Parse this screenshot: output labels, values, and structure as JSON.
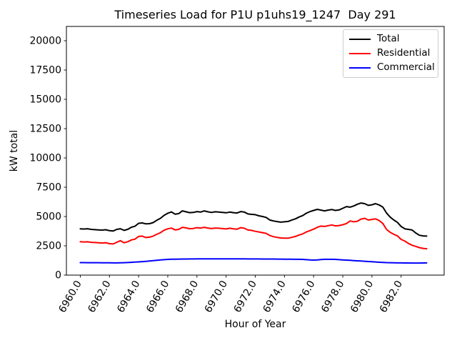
{
  "figure": {
    "background": "#ffffff"
  },
  "chart_data": {
    "type": "line",
    "title": "Timeseries Load for P1U p1uhs19_1247  Day 291",
    "xlabel": "Hour of Year",
    "ylabel": "kW total",
    "grid": false,
    "legend_position": "upper right",
    "xlim": [
      6959.05,
      6984.95
    ],
    "ylim": [
      0,
      21220
    ],
    "x_start": 6960.0,
    "x_step": 0.25,
    "xticks": {
      "values": [
        6960,
        6962,
        6964,
        6966,
        6968,
        6970,
        6972,
        6974,
        6976,
        6978,
        6980,
        6982
      ],
      "labels": [
        "6960.0",
        "6962.0",
        "6964.0",
        "6966.0",
        "6968.0",
        "6970.0",
        "6972.0",
        "6974.0",
        "6976.0",
        "6978.0",
        "6980.0",
        "6982.0"
      ],
      "rotation_deg": 60
    },
    "yticks": {
      "values": [
        0,
        2500,
        5000,
        7500,
        10000,
        12500,
        15000,
        17500,
        20000
      ],
      "labels": [
        "0",
        "2500",
        "5000",
        "7500",
        "10000",
        "12500",
        "15000",
        "17500",
        "20000"
      ]
    },
    "series": [
      {
        "name": "Total",
        "color": "#000000",
        "values": [
          3950,
          3930,
          3960,
          3900,
          3880,
          3860,
          3840,
          3870,
          3790,
          3760,
          3900,
          3960,
          3820,
          3900,
          4080,
          4170,
          4420,
          4450,
          4370,
          4390,
          4480,
          4680,
          4850,
          5100,
          5280,
          5390,
          5200,
          5250,
          5480,
          5400,
          5330,
          5350,
          5420,
          5380,
          5480,
          5400,
          5350,
          5400,
          5380,
          5350,
          5320,
          5380,
          5330,
          5300,
          5420,
          5380,
          5220,
          5180,
          5160,
          5060,
          5000,
          4920,
          4700,
          4620,
          4570,
          4520,
          4550,
          4580,
          4700,
          4800,
          4960,
          5080,
          5280,
          5420,
          5520,
          5610,
          5550,
          5480,
          5550,
          5600,
          5520,
          5560,
          5700,
          5850,
          5800,
          5900,
          6050,
          6150,
          6100,
          5950,
          6000,
          6100,
          5980,
          5800,
          5300,
          4950,
          4700,
          4500,
          4150,
          3950,
          3900,
          3850,
          3600,
          3400,
          3350,
          3330
        ]
      },
      {
        "name": "Residential",
        "color": "#ff0000",
        "values": [
          2850,
          2830,
          2840,
          2800,
          2780,
          2760,
          2740,
          2770,
          2680,
          2660,
          2800,
          2940,
          2760,
          2850,
          3000,
          3070,
          3300,
          3330,
          3210,
          3240,
          3330,
          3480,
          3620,
          3830,
          3950,
          4010,
          3860,
          3900,
          4080,
          4030,
          3960,
          3980,
          4050,
          4010,
          4080,
          4020,
          3970,
          4020,
          4000,
          3970,
          3940,
          4000,
          3950,
          3920,
          4050,
          4000,
          3850,
          3820,
          3740,
          3680,
          3620,
          3560,
          3380,
          3280,
          3220,
          3170,
          3160,
          3150,
          3220,
          3300,
          3420,
          3520,
          3680,
          3800,
          3920,
          4080,
          4180,
          4150,
          4220,
          4280,
          4200,
          4230,
          4300,
          4400,
          4620,
          4550,
          4600,
          4780,
          4850,
          4700,
          4750,
          4800,
          4650,
          4400,
          3900,
          3650,
          3480,
          3350,
          3050,
          2900,
          2700,
          2550,
          2450,
          2350,
          2280,
          2250
        ]
      },
      {
        "name": "Commercial",
        "color": "#0000ff",
        "values": [
          1070,
          1065,
          1060,
          1060,
          1060,
          1060,
          1055,
          1055,
          1050,
          1045,
          1045,
          1050,
          1060,
          1075,
          1090,
          1110,
          1130,
          1150,
          1170,
          1200,
          1230,
          1260,
          1290,
          1320,
          1340,
          1355,
          1360,
          1365,
          1370,
          1375,
          1380,
          1380,
          1385,
          1385,
          1390,
          1390,
          1390,
          1390,
          1390,
          1390,
          1390,
          1390,
          1385,
          1385,
          1385,
          1385,
          1380,
          1380,
          1380,
          1380,
          1375,
          1375,
          1370,
          1370,
          1365,
          1365,
          1360,
          1360,
          1355,
          1350,
          1345,
          1340,
          1320,
          1300,
          1280,
          1290,
          1330,
          1345,
          1350,
          1345,
          1340,
          1320,
          1300,
          1280,
          1260,
          1240,
          1220,
          1200,
          1180,
          1160,
          1140,
          1120,
          1100,
          1085,
          1070,
          1060,
          1050,
          1045,
          1040,
          1035,
          1035,
          1030,
          1030,
          1030,
          1035,
          1040
        ]
      }
    ]
  }
}
